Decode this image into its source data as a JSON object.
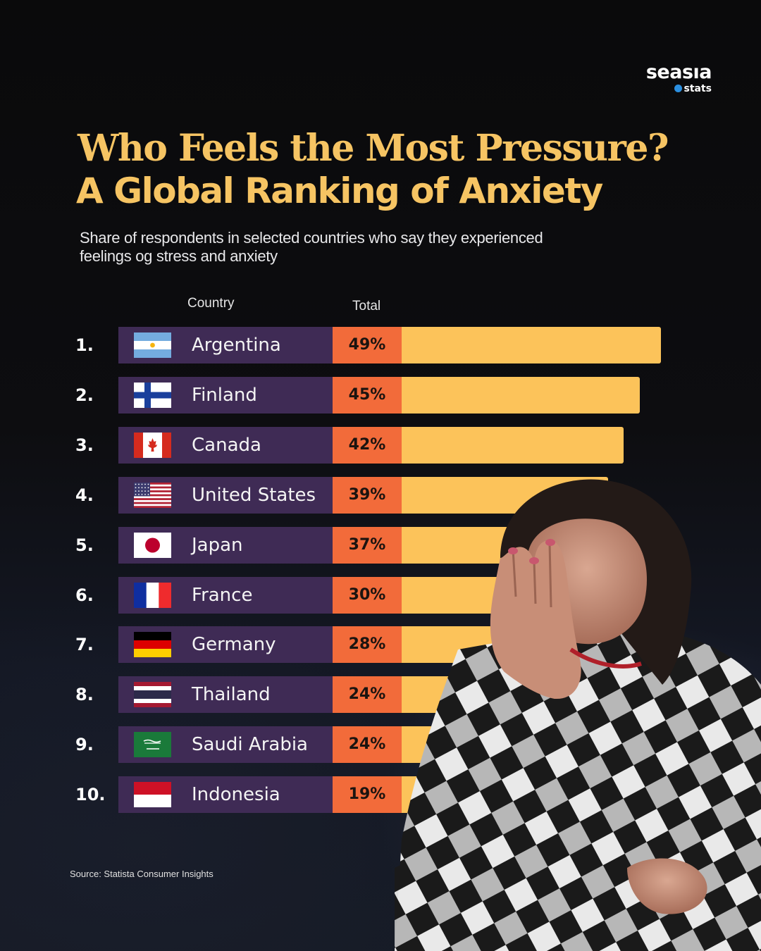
{
  "brand": {
    "name": "seasıa",
    "sub": "stats"
  },
  "title_line1": "Who Feels the Most Pressure?",
  "title_line2": "A Global Ranking of Anxiety",
  "subtitle": "Share of respondents in selected countries who say they experienced feelings og stress and anxiety",
  "columns": {
    "country": "Country",
    "total": "Total"
  },
  "source": "Source: Statista Consumer Insights",
  "colors": {
    "title": "#f6c463",
    "label_bg": "#3f2b55",
    "value_bg": "#f26b3a",
    "bar": "#fcc35a"
  },
  "chart_data": {
    "type": "bar",
    "orientation": "horizontal",
    "title": "Who Feels the Most Pressure? A Global Ranking of Anxiety",
    "subtitle": "Share of respondents in selected countries who say they experienced feelings og stress and anxiety",
    "unit": "%",
    "xlim": [
      0,
      49
    ],
    "rows": [
      {
        "rank": "1.",
        "country": "Argentina",
        "flag": "argentina-flag-icon",
        "value": 49,
        "label": "49%"
      },
      {
        "rank": "2.",
        "country": "Finland",
        "flag": "finland-flag-icon",
        "value": 45,
        "label": "45%"
      },
      {
        "rank": "3.",
        "country": "Canada",
        "flag": "canada-flag-icon",
        "value": 42,
        "label": "42%"
      },
      {
        "rank": "4.",
        "country": "United States",
        "flag": "united-states-flag-icon",
        "value": 39,
        "label": "39%"
      },
      {
        "rank": "5.",
        "country": "Japan",
        "flag": "japan-flag-icon",
        "value": 37,
        "label": "37%"
      },
      {
        "rank": "6.",
        "country": "France",
        "flag": "france-flag-icon",
        "value": 30,
        "label": "30%"
      },
      {
        "rank": "7.",
        "country": "Germany",
        "flag": "germany-flag-icon",
        "value": 28,
        "label": "28%"
      },
      {
        "rank": "8.",
        "country": "Thailand",
        "flag": "thailand-flag-icon",
        "value": 24,
        "label": "24%"
      },
      {
        "rank": "9.",
        "country": "Saudi Arabia",
        "flag": "saudi-arabia-flag-icon",
        "value": 24,
        "label": "24%"
      },
      {
        "rank": "10.",
        "country": "Indonesia",
        "flag": "indonesia-flag-icon",
        "value": 19,
        "label": "19%"
      }
    ]
  }
}
